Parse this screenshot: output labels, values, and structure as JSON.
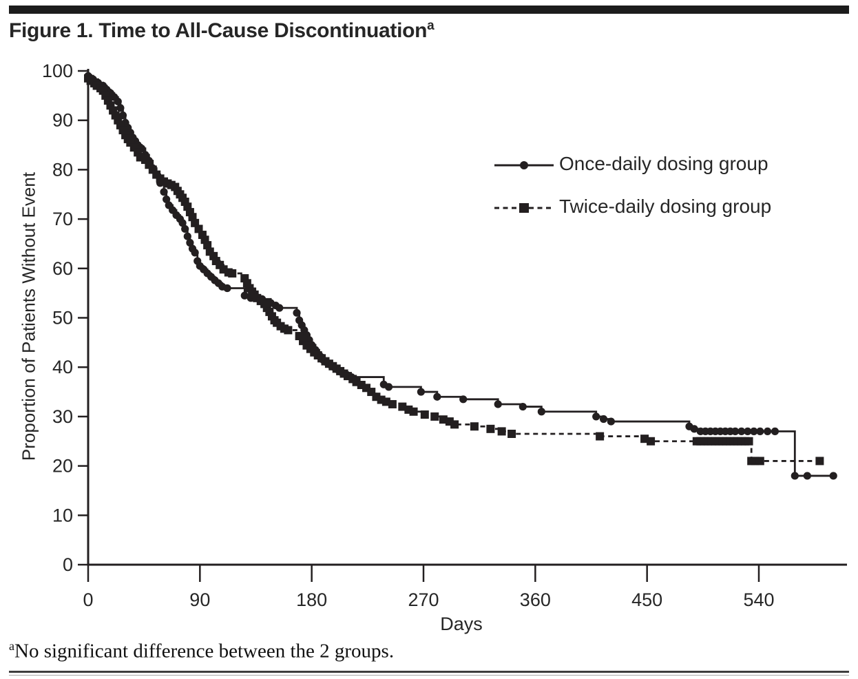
{
  "header": {
    "title": "Figure 1. Time to All-Cause Discontinuation",
    "title_superscript": "a"
  },
  "footnote": {
    "marker": "a",
    "text": "No significant difference between the 2 groups."
  },
  "colors": {
    "ink": "#231f20",
    "top_bar": "#1c1c1c",
    "bottom_rule": "#3d3d3d"
  },
  "chart_data": {
    "type": "line",
    "subtype": "kaplan-meier-step",
    "title": "Time to All-Cause Discontinuation",
    "xlabel": "Days",
    "ylabel": "Proportion of Patients Without Event",
    "xlim": [
      0,
      608
    ],
    "ylim": [
      0,
      100
    ],
    "xticks": [
      0,
      90,
      180,
      270,
      360,
      450,
      540
    ],
    "yticks": [
      0,
      10,
      20,
      30,
      40,
      50,
      60,
      70,
      80,
      90,
      100
    ],
    "grid": false,
    "legend_position": "upper-right-inside",
    "series": [
      {
        "name": "Once-daily dosing group",
        "marker": "circle",
        "line_style": "solid",
        "color": "#231f20",
        "points": [
          [
            0,
            99
          ],
          [
            4,
            98.3
          ],
          [
            8,
            97.6
          ],
          [
            12,
            97
          ],
          [
            15,
            96.2
          ],
          [
            18,
            95.5
          ],
          [
            21,
            94.7
          ],
          [
            24,
            93.8
          ],
          [
            26,
            92.5
          ],
          [
            28,
            91
          ],
          [
            30,
            89.5
          ],
          [
            32,
            88.5
          ],
          [
            34,
            87.5
          ],
          [
            36,
            86.5
          ],
          [
            38,
            85.8
          ],
          [
            40,
            85
          ],
          [
            43,
            84.3
          ],
          [
            46,
            83
          ],
          [
            49,
            81.8
          ],
          [
            52,
            80.3
          ],
          [
            55,
            79
          ],
          [
            58,
            77.3
          ],
          [
            61,
            75.5
          ],
          [
            63,
            74
          ],
          [
            65,
            72.8
          ],
          [
            68,
            71.8
          ],
          [
            71,
            70.8
          ],
          [
            74,
            70
          ],
          [
            76,
            69.2
          ],
          [
            78,
            68
          ],
          [
            80,
            66.5
          ],
          [
            82,
            65.2
          ],
          [
            84,
            64
          ],
          [
            86,
            63.2
          ],
          [
            88,
            61.5
          ],
          [
            90,
            60.5
          ],
          [
            93,
            59.8
          ],
          [
            96,
            59
          ],
          [
            99,
            58.3
          ],
          [
            102,
            57.6
          ],
          [
            105,
            57
          ],
          [
            108,
            56.3
          ],
          [
            112,
            56
          ],
          [
            126,
            54.5
          ],
          [
            131,
            54
          ],
          [
            140,
            53.8
          ],
          [
            147,
            53
          ],
          [
            151,
            52.5
          ],
          [
            154,
            52
          ],
          [
            168,
            51
          ],
          [
            170,
            49.5
          ],
          [
            172,
            48.5
          ],
          [
            174,
            47.5
          ],
          [
            176,
            46.5
          ],
          [
            178,
            45.5
          ],
          [
            180,
            44.5
          ],
          [
            183,
            43.5
          ],
          [
            186,
            42.5
          ],
          [
            189,
            41.5
          ],
          [
            192,
            41
          ],
          [
            195,
            40.5
          ],
          [
            198,
            40
          ],
          [
            201,
            39.5
          ],
          [
            204,
            39
          ],
          [
            208,
            38.5
          ],
          [
            212,
            38
          ],
          [
            238,
            36.5
          ],
          [
            242,
            36
          ],
          [
            268,
            35
          ],
          [
            281,
            34
          ],
          [
            302,
            33.5
          ],
          [
            330,
            32.5
          ],
          [
            350,
            32
          ],
          [
            365,
            31
          ],
          [
            409,
            30
          ],
          [
            415,
            29.5
          ],
          [
            421,
            29
          ],
          [
            484,
            28
          ],
          [
            488,
            27.5
          ],
          [
            493,
            27
          ],
          [
            497,
            27
          ],
          [
            501,
            27
          ],
          [
            505,
            27
          ],
          [
            509,
            27
          ],
          [
            513,
            27
          ],
          [
            517,
            27
          ],
          [
            521,
            27
          ],
          [
            526,
            27
          ],
          [
            531,
            27
          ],
          [
            536,
            27
          ],
          [
            541,
            27
          ],
          [
            547,
            27
          ],
          [
            553,
            27
          ],
          [
            569,
            18
          ],
          [
            579,
            18
          ],
          [
            600,
            18
          ]
        ]
      },
      {
        "name": "Twice-daily dosing group",
        "marker": "square",
        "line_style": "dashed",
        "color": "#231f20",
        "points": [
          [
            0,
            98.5
          ],
          [
            2,
            98
          ],
          [
            5,
            97.5
          ],
          [
            7,
            97
          ],
          [
            10,
            96.5
          ],
          [
            12,
            96
          ],
          [
            14,
            95
          ],
          [
            16,
            94
          ],
          [
            18,
            93
          ],
          [
            20,
            92
          ],
          [
            22,
            91
          ],
          [
            24,
            90
          ],
          [
            26,
            89
          ],
          [
            28,
            88
          ],
          [
            30,
            87
          ],
          [
            32,
            86.2
          ],
          [
            34,
            85.5
          ],
          [
            37,
            84.5
          ],
          [
            40,
            83.5
          ],
          [
            42,
            82.5
          ],
          [
            46,
            82
          ],
          [
            49,
            81
          ],
          [
            52,
            80
          ],
          [
            55,
            79
          ],
          [
            58,
            78.2
          ],
          [
            61,
            77.6
          ],
          [
            64,
            77.2
          ],
          [
            67,
            76.9
          ],
          [
            70,
            76.5
          ],
          [
            72,
            75.7
          ],
          [
            74,
            75
          ],
          [
            76,
            74.3
          ],
          [
            78,
            73.5
          ],
          [
            80,
            72.5
          ],
          [
            82,
            71.4
          ],
          [
            84,
            70.4
          ],
          [
            86,
            69.2
          ],
          [
            89,
            68
          ],
          [
            92,
            66.8
          ],
          [
            94,
            65.8
          ],
          [
            96,
            64.7
          ],
          [
            98,
            63.4
          ],
          [
            101,
            62.5
          ],
          [
            103,
            61.5
          ],
          [
            106,
            60.7
          ],
          [
            109,
            59.8
          ],
          [
            113,
            59.2
          ],
          [
            116,
            59
          ],
          [
            126,
            58
          ],
          [
            128,
            57
          ],
          [
            130,
            56
          ],
          [
            132,
            55.3
          ],
          [
            134,
            54.7
          ],
          [
            136,
            54
          ],
          [
            139,
            53.4
          ],
          [
            142,
            52.8
          ],
          [
            144,
            52
          ],
          [
            146,
            51.2
          ],
          [
            148,
            50.3
          ],
          [
            150,
            49.5
          ],
          [
            152,
            49
          ],
          [
            155,
            48.3
          ],
          [
            158,
            47.8
          ],
          [
            161,
            47.5
          ],
          [
            170,
            46.3
          ],
          [
            173,
            45.3
          ],
          [
            176,
            44.4
          ],
          [
            179,
            43.7
          ],
          [
            182,
            43
          ],
          [
            185,
            42.4
          ],
          [
            188,
            41.8
          ],
          [
            191,
            41.2
          ],
          [
            194,
            40.7
          ],
          [
            197,
            40.2
          ],
          [
            200,
            39.7
          ],
          [
            203,
            39.2
          ],
          [
            206,
            38.7
          ],
          [
            209,
            38.2
          ],
          [
            213,
            37.6
          ],
          [
            216,
            37
          ],
          [
            220,
            36.4
          ],
          [
            224,
            35.8
          ],
          [
            228,
            35
          ],
          [
            232,
            34
          ],
          [
            236,
            33.4
          ],
          [
            240,
            33
          ],
          [
            245,
            32.5
          ],
          [
            253,
            32
          ],
          [
            258,
            31.4
          ],
          [
            262,
            31
          ],
          [
            271,
            30.4
          ],
          [
            279,
            30
          ],
          [
            286,
            29.4
          ],
          [
            291,
            29
          ],
          [
            295,
            28.4
          ],
          [
            311,
            28
          ],
          [
            324,
            27.5
          ],
          [
            333,
            27
          ],
          [
            341,
            26.5
          ],
          [
            412,
            26
          ],
          [
            448,
            25.5
          ],
          [
            453,
            25
          ],
          [
            490,
            25
          ],
          [
            493,
            25
          ],
          [
            496,
            25
          ],
          [
            499,
            25
          ],
          [
            502,
            25
          ],
          [
            505,
            25
          ],
          [
            508,
            25
          ],
          [
            511,
            25
          ],
          [
            514,
            25
          ],
          [
            517,
            25
          ],
          [
            520,
            25
          ],
          [
            523,
            25
          ],
          [
            526,
            25
          ],
          [
            529,
            25
          ],
          [
            532,
            25
          ],
          [
            534,
            21
          ],
          [
            537,
            21
          ],
          [
            541,
            21
          ],
          [
            589,
            21
          ]
        ]
      }
    ]
  }
}
